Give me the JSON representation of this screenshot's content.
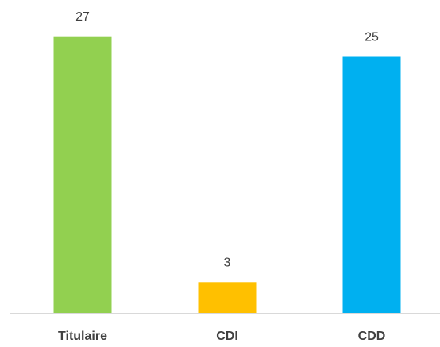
{
  "chart_data": {
    "type": "bar",
    "categories": [
      "Titulaire",
      "CDI",
      "CDD"
    ],
    "values": [
      27,
      3,
      25
    ],
    "colors": [
      "#92d050",
      "#ffc000",
      "#00b0f0"
    ],
    "ylim": [
      0,
      30
    ]
  }
}
